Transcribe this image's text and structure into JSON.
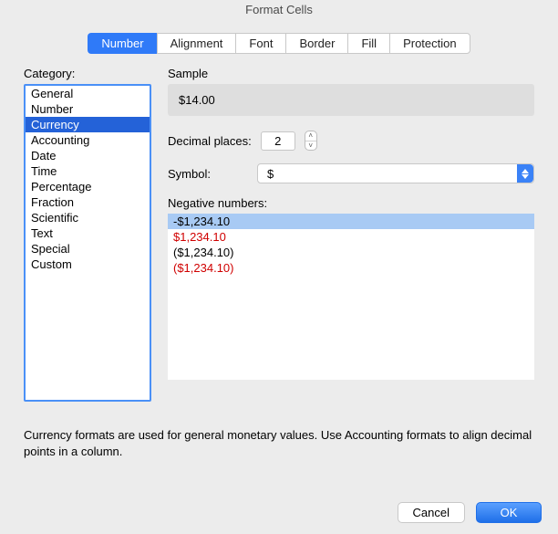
{
  "window": {
    "title": "Format Cells"
  },
  "tabs": {
    "items": [
      "Number",
      "Alignment",
      "Font",
      "Border",
      "Fill",
      "Protection"
    ],
    "selected_index": 0
  },
  "category": {
    "label": "Category:",
    "items": [
      "General",
      "Number",
      "Currency",
      "Accounting",
      "Date",
      "Time",
      "Percentage",
      "Fraction",
      "Scientific",
      "Text",
      "Special",
      "Custom"
    ],
    "selected_index": 2
  },
  "sample": {
    "label": "Sample",
    "value": "$14.00"
  },
  "decimal": {
    "label": "Decimal places:",
    "value": "2"
  },
  "symbol": {
    "label": "Symbol:",
    "value": "$"
  },
  "negative": {
    "label": "Negative numbers:",
    "items": [
      {
        "text": "-$1,234.10",
        "color": "#000000"
      },
      {
        "text": "$1,234.10",
        "color": "#d00000"
      },
      {
        "text": "($1,234.10)",
        "color": "#000000"
      },
      {
        "text": "($1,234.10)",
        "color": "#d00000"
      }
    ],
    "selected_index": 0
  },
  "description": "Currency formats are used for general monetary values.  Use Accounting formats to align decimal points in a column.",
  "footer": {
    "cancel": "Cancel",
    "ok": "OK"
  },
  "colors": {
    "accent": "#2f7af8",
    "selection_list": "#2462d8",
    "selection_soft": "#a8caf4",
    "background": "#ececec"
  }
}
